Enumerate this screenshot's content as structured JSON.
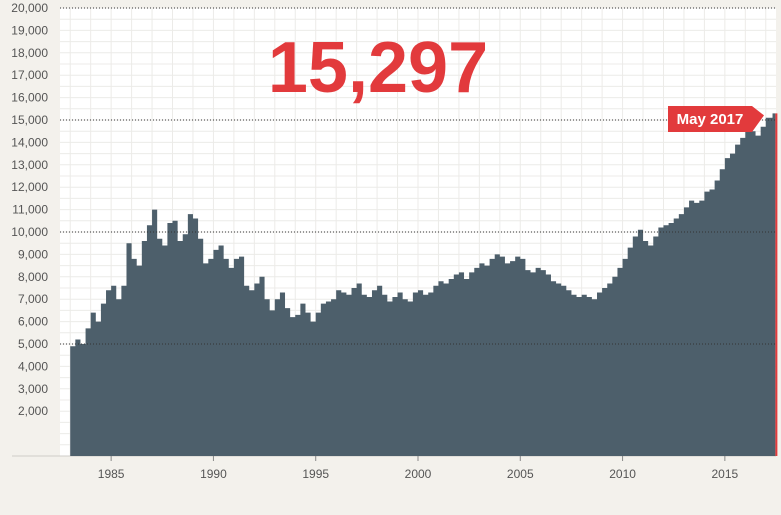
{
  "headline": "15,297",
  "callout_label": "May 2017",
  "colors": {
    "background": "#f3f1ec",
    "plot_background": "#ffffff",
    "area_fill": "#4d5f6b",
    "accent_red": "#e23a3c",
    "grid": "#ecebe8",
    "axis_text": "#555555",
    "dotted_line": "#333333"
  },
  "chart_data": {
    "type": "area",
    "title": "15,297",
    "xlabel": "",
    "ylabel": "",
    "ylim": [
      0,
      20000
    ],
    "xlim": [
      1982.5,
      2017.5
    ],
    "y_ticks": [
      2000,
      3000,
      4000,
      5000,
      6000,
      7000,
      8000,
      9000,
      10000,
      11000,
      12000,
      13000,
      14000,
      15000,
      16000,
      17000,
      18000,
      19000,
      20000
    ],
    "y_tick_labels": [
      "2,000",
      "3,000",
      "4,000",
      "5,000",
      "6,000",
      "7,000",
      "8,000",
      "9,000",
      "10,000",
      "11,000",
      "12,000",
      "13,000",
      "14,000",
      "15,000",
      "16,000",
      "17,000",
      "18,000",
      "19,000",
      "20,000"
    ],
    "x_ticks": [
      1985,
      1990,
      1995,
      2000,
      2005,
      2010,
      2015
    ],
    "x_tick_labels": [
      "1985",
      "1990",
      "1995",
      "2000",
      "2005",
      "2010",
      "2015"
    ],
    "reference_lines": [
      20000,
      15000,
      10000,
      5000
    ],
    "grid": true,
    "last_point": {
      "x": "May 2017",
      "y": 15297
    },
    "series": [
      {
        "x": [
          1983.0,
          1983.25,
          1983.5,
          1983.75,
          1984.0,
          1984.25,
          1984.5,
          1984.75,
          1985.0,
          1985.25,
          1985.5,
          1985.75,
          1986.0,
          1986.25,
          1986.5,
          1986.75,
          1987.0,
          1987.25,
          1987.5,
          1987.75,
          1988.0,
          1988.25,
          1988.5,
          1988.75,
          1989.0,
          1989.25,
          1989.5,
          1989.75,
          1990.0,
          1990.25,
          1990.5,
          1990.75,
          1991.0,
          1991.25,
          1991.5,
          1991.75,
          1992.0,
          1992.25,
          1992.5,
          1992.75,
          1993.0,
          1993.25,
          1993.5,
          1993.75,
          1994.0,
          1994.25,
          1994.5,
          1994.75,
          1995.0,
          1995.25,
          1995.5,
          1995.75,
          1996.0,
          1996.25,
          1996.5,
          1996.75,
          1997.0,
          1997.25,
          1997.5,
          1997.75,
          1998.0,
          1998.25,
          1998.5,
          1998.75,
          1999.0,
          1999.25,
          1999.5,
          1999.75,
          2000.0,
          2000.25,
          2000.5,
          2000.75,
          2001.0,
          2001.25,
          2001.5,
          2001.75,
          2002.0,
          2002.25,
          2002.5,
          2002.75,
          2003.0,
          2003.25,
          2003.5,
          2003.75,
          2004.0,
          2004.25,
          2004.5,
          2004.75,
          2005.0,
          2005.25,
          2005.5,
          2005.75,
          2006.0,
          2006.25,
          2006.5,
          2006.75,
          2007.0,
          2007.25,
          2007.5,
          2007.75,
          2008.0,
          2008.25,
          2008.5,
          2008.75,
          2009.0,
          2009.25,
          2009.5,
          2009.75,
          2010.0,
          2010.25,
          2010.5,
          2010.75,
          2011.0,
          2011.25,
          2011.5,
          2011.75,
          2012.0,
          2012.25,
          2012.5,
          2012.75,
          2013.0,
          2013.25,
          2013.5,
          2013.75,
          2014.0,
          2014.25,
          2014.5,
          2014.75,
          2015.0,
          2015.25,
          2015.5,
          2015.75,
          2016.0,
          2016.25,
          2016.5,
          2016.75,
          2017.0,
          2017.33
        ],
        "y": [
          4900,
          5200,
          5000,
          5700,
          6400,
          6000,
          6800,
          7400,
          7600,
          7000,
          7600,
          9500,
          8800,
          8500,
          9600,
          10300,
          11000,
          9700,
          9400,
          10400,
          10500,
          9600,
          9900,
          10800,
          10600,
          9700,
          8600,
          8800,
          9200,
          9400,
          8800,
          8400,
          8800,
          8900,
          7600,
          7400,
          7700,
          8000,
          7000,
          6500,
          7000,
          7300,
          6600,
          6200,
          6300,
          6800,
          6400,
          6000,
          6400,
          6800,
          6900,
          7000,
          7400,
          7300,
          7200,
          7500,
          7700,
          7200,
          7100,
          7400,
          7600,
          7200,
          6900,
          7100,
          7300,
          7000,
          6900,
          7300,
          7400,
          7200,
          7300,
          7600,
          7800,
          7700,
          7900,
          8100,
          8200,
          7900,
          8200,
          8400,
          8600,
          8500,
          8800,
          9000,
          8900,
          8600,
          8700,
          8900,
          8800,
          8300,
          8200,
          8400,
          8300,
          8100,
          7800,
          7700,
          7600,
          7400,
          7200,
          7100,
          7200,
          7100,
          7000,
          7300,
          7500,
          7700,
          8000,
          8400,
          8800,
          9300,
          9800,
          10100,
          9600,
          9400,
          9800,
          10200,
          10300,
          10400,
          10600,
          10800,
          11100,
          11400,
          11300,
          11400,
          11800,
          11900,
          12300,
          12800,
          13300,
          13500,
          13900,
          14200,
          14600,
          14500,
          14300,
          14700,
          15100,
          15297
        ]
      }
    ]
  }
}
